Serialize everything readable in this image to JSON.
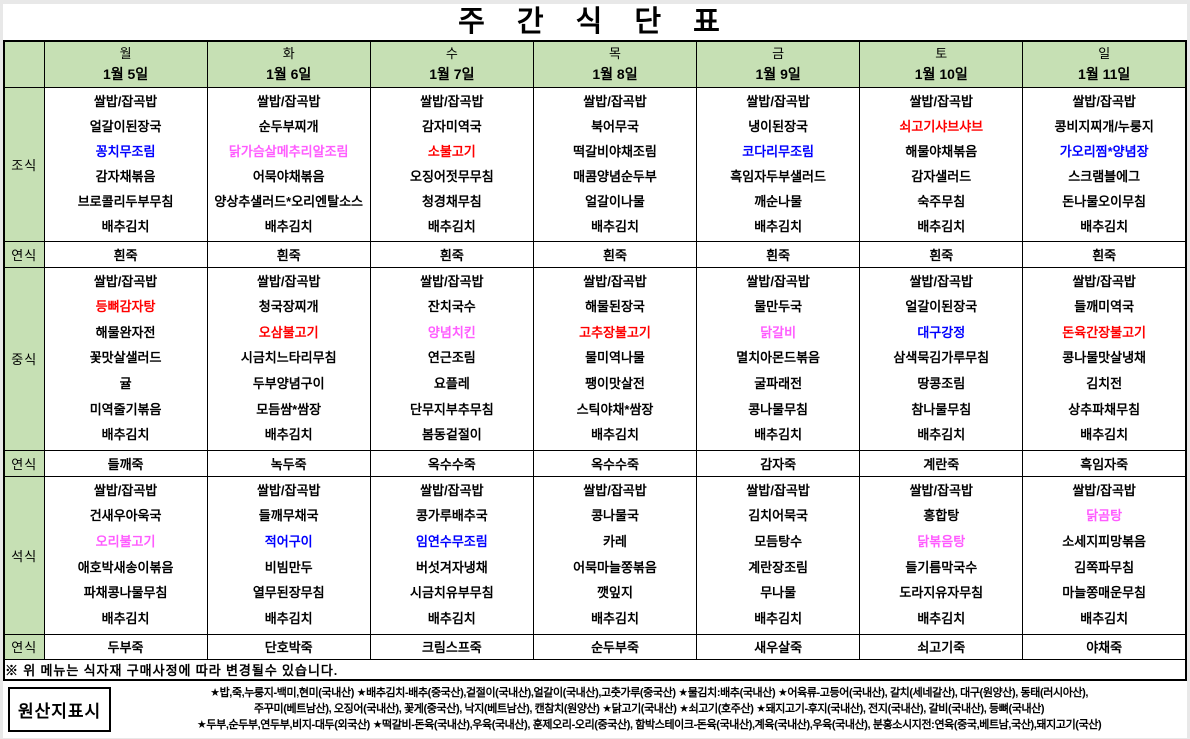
{
  "title": "주 간 식 단 표",
  "note": "※ 위 메뉴는 식자재 구매사정에 따라 변경될수 있습니다.",
  "colors": {
    "red": "#ff0000",
    "blue": "#0000ff",
    "pink": "#ff5cff",
    "header_green": "#c6e0b4"
  },
  "sections": [
    {
      "key": "breakfast",
      "label": "조식",
      "kind": "meal"
    },
    {
      "key": "breakfast_soft",
      "label": "연식",
      "kind": "soft"
    },
    {
      "key": "lunch",
      "label": "중식",
      "kind": "meal"
    },
    {
      "key": "lunch_soft",
      "label": "연식",
      "kind": "soft"
    },
    {
      "key": "dinner",
      "label": "석식",
      "kind": "meal"
    },
    {
      "key": "dinner_soft",
      "label": "연식",
      "kind": "soft"
    }
  ],
  "days": [
    {
      "name": "월",
      "date": "1월 5일",
      "breakfast": [
        {
          "t": "쌀밥/잡곡밥"
        },
        {
          "t": "얼갈이된장국"
        },
        {
          "t": "꽁치무조림",
          "c": "blue"
        },
        {
          "t": "감자채볶음"
        },
        {
          "t": "브로콜리두부무침"
        },
        {
          "t": "배추김치"
        }
      ],
      "breakfast_soft": "흰죽",
      "lunch": [
        {
          "t": "쌀밥/잡곡밥"
        },
        {
          "t": "등뼈감자탕",
          "c": "red"
        },
        {
          "t": "해물완자전"
        },
        {
          "t": "꽃맛살샐러드"
        },
        {
          "t": "귤"
        },
        {
          "t": "미역줄기볶음"
        },
        {
          "t": "배추김치"
        }
      ],
      "lunch_soft": "들깨죽",
      "dinner": [
        {
          "t": "쌀밥/잡곡밥"
        },
        {
          "t": "건새우아욱국"
        },
        {
          "t": "오리불고기",
          "c": "pink"
        },
        {
          "t": "애호박새송이볶음"
        },
        {
          "t": "파채콩나물무침"
        },
        {
          "t": "배추김치"
        }
      ],
      "dinner_soft": "두부죽"
    },
    {
      "name": "화",
      "date": "1월 6일",
      "breakfast": [
        {
          "t": "쌀밥/잡곡밥"
        },
        {
          "t": "순두부찌개"
        },
        {
          "t": "닭가슴살메추리알조림",
          "c": "pink"
        },
        {
          "t": "어묵야채볶음"
        },
        {
          "t": "양상추샐러드*오리엔탈소스"
        },
        {
          "t": "배추김치"
        }
      ],
      "breakfast_soft": "흰죽",
      "lunch": [
        {
          "t": "쌀밥/잡곡밥"
        },
        {
          "t": "청국장찌개"
        },
        {
          "t": "오삼불고기",
          "c": "red"
        },
        {
          "t": "시금치느타리무침"
        },
        {
          "t": "두부양념구이"
        },
        {
          "t": "모듬쌈*쌈장"
        },
        {
          "t": "배추김치"
        }
      ],
      "lunch_soft": "녹두죽",
      "dinner": [
        {
          "t": "쌀밥/잡곡밥"
        },
        {
          "t": "들깨무채국"
        },
        {
          "t": "적어구이",
          "c": "blue"
        },
        {
          "t": "비빔만두"
        },
        {
          "t": "열무된장무침"
        },
        {
          "t": "배추김치"
        }
      ],
      "dinner_soft": "단호박죽"
    },
    {
      "name": "수",
      "date": "1월 7일",
      "breakfast": [
        {
          "t": "쌀밥/잡곡밥"
        },
        {
          "t": "감자미역국"
        },
        {
          "t": "소불고기",
          "c": "red"
        },
        {
          "t": "오징어젓무무침"
        },
        {
          "t": "청경채무침"
        },
        {
          "t": "배추김치"
        }
      ],
      "breakfast_soft": "흰죽",
      "lunch": [
        {
          "t": "쌀밥/잡곡밥"
        },
        {
          "t": "잔치국수"
        },
        {
          "t": "양념치킨",
          "c": "pink"
        },
        {
          "t": "연근조림"
        },
        {
          "t": "요플레"
        },
        {
          "t": "단무지부추무침"
        },
        {
          "t": "봄동겉절이"
        }
      ],
      "lunch_soft": "옥수수죽",
      "dinner": [
        {
          "t": "쌀밥/잡곡밥"
        },
        {
          "t": "콩가루배추국"
        },
        {
          "t": "임연수무조림",
          "c": "blue"
        },
        {
          "t": "버섯겨자냉채"
        },
        {
          "t": "시금치유부무침"
        },
        {
          "t": "배추김치"
        }
      ],
      "dinner_soft": "크림스프죽"
    },
    {
      "name": "목",
      "date": "1월 8일",
      "breakfast": [
        {
          "t": "쌀밥/잡곡밥"
        },
        {
          "t": "북어무국"
        },
        {
          "t": "떡갈비야채조림"
        },
        {
          "t": "매콤양념순두부"
        },
        {
          "t": "얼갈이나물"
        },
        {
          "t": "배추김치"
        }
      ],
      "breakfast_soft": "흰죽",
      "lunch": [
        {
          "t": "쌀밥/잡곡밥"
        },
        {
          "t": "해물된장국"
        },
        {
          "t": "고추장불고기",
          "c": "red"
        },
        {
          "t": "물미역나물"
        },
        {
          "t": "팽이맛살전"
        },
        {
          "t": "스틱야채*쌈장"
        },
        {
          "t": "배추김치"
        }
      ],
      "lunch_soft": "옥수수죽",
      "dinner": [
        {
          "t": "쌀밥/잡곡밥"
        },
        {
          "t": "콩나물국"
        },
        {
          "t": "카레"
        },
        {
          "t": "어묵마늘쫑볶음"
        },
        {
          "t": "깻잎지"
        },
        {
          "t": "배추김치"
        }
      ],
      "dinner_soft": "순두부죽"
    },
    {
      "name": "금",
      "date": "1월 9일",
      "breakfast": [
        {
          "t": "쌀밥/잡곡밥"
        },
        {
          "t": "냉이된장국"
        },
        {
          "t": "코다리무조림",
          "c": "blue"
        },
        {
          "t": "흑임자두부샐러드"
        },
        {
          "t": "깨순나물"
        },
        {
          "t": "배추김치"
        }
      ],
      "breakfast_soft": "흰죽",
      "lunch": [
        {
          "t": "쌀밥/잡곡밥"
        },
        {
          "t": "물만두국"
        },
        {
          "t": "닭갈비",
          "c": "pink"
        },
        {
          "t": "멸치아몬드볶음"
        },
        {
          "t": "굴파래전"
        },
        {
          "t": "콩나물무침"
        },
        {
          "t": "배추김치"
        }
      ],
      "lunch_soft": "감자죽",
      "dinner": [
        {
          "t": "쌀밥/잡곡밥"
        },
        {
          "t": "김치어묵국"
        },
        {
          "t": "모듬탕수"
        },
        {
          "t": "계란장조림"
        },
        {
          "t": "무나물"
        },
        {
          "t": "배추김치"
        }
      ],
      "dinner_soft": "새우살죽"
    },
    {
      "name": "토",
      "date": "1월 10일",
      "breakfast": [
        {
          "t": "쌀밥/잡곡밥"
        },
        {
          "t": "쇠고기샤브샤브",
          "c": "red"
        },
        {
          "t": "해물야채볶음"
        },
        {
          "t": "감자샐러드"
        },
        {
          "t": "숙주무침"
        },
        {
          "t": "배추김치"
        }
      ],
      "breakfast_soft": "흰죽",
      "lunch": [
        {
          "t": "쌀밥/잡곡밥"
        },
        {
          "t": "얼갈이된장국"
        },
        {
          "t": "대구강정",
          "c": "blue"
        },
        {
          "t": "삼색묵김가루무침"
        },
        {
          "t": "땅콩조림"
        },
        {
          "t": "참나물무침"
        },
        {
          "t": "배추김치"
        }
      ],
      "lunch_soft": "계란죽",
      "dinner": [
        {
          "t": "쌀밥/잡곡밥"
        },
        {
          "t": "홍합탕"
        },
        {
          "t": "닭볶음탕",
          "c": "pink"
        },
        {
          "t": "들기름막국수"
        },
        {
          "t": "도라지유자무침"
        },
        {
          "t": "배추김치"
        }
      ],
      "dinner_soft": "쇠고기죽"
    },
    {
      "name": "일",
      "date": "1월 11일",
      "breakfast": [
        {
          "t": "쌀밥/잡곡밥"
        },
        {
          "t": "콩비지찌개/누룽지"
        },
        {
          "t": "가오리찜*양념장",
          "c": "blue"
        },
        {
          "t": "스크램블에그"
        },
        {
          "t": "돈나물오이무침"
        },
        {
          "t": "배추김치"
        }
      ],
      "breakfast_soft": "흰죽",
      "lunch": [
        {
          "t": "쌀밥/잡곡밥"
        },
        {
          "t": "들깨미역국"
        },
        {
          "t": "돈육간장불고기",
          "c": "red"
        },
        {
          "t": "콩나물맛살냉채"
        },
        {
          "t": "김치전"
        },
        {
          "t": "상추파채무침"
        },
        {
          "t": "배추김치"
        }
      ],
      "lunch_soft": "흑임자죽",
      "dinner": [
        {
          "t": "쌀밥/잡곡밥"
        },
        {
          "t": "닭곰탕",
          "c": "pink"
        },
        {
          "t": "소세지피망볶음"
        },
        {
          "t": "김쪽파무침"
        },
        {
          "t": "마늘쫑매운무침"
        },
        {
          "t": "배추김치"
        }
      ],
      "dinner_soft": "야채죽"
    }
  ],
  "origin": {
    "label": "원산지표시",
    "lines": [
      "★밥,죽,누룽지-백미,현미(국내산) ★배추김치-배추(중국산),겉절이(국내산),얼갈이(국내산),고춧가루(중국산) ★물김치:배추(국내산) ★어육류-고등어(국내산), 갈치(세네갈산), 대구(원양산), 동태(러시아산),",
      "주꾸미(베트남산), 오징어(국내산), 꽃게(중국산), 낙지(베트남산), 캔참치(원양산) ★닭고기(국내산) ★쇠고기(호주산) ★돼지고기-후지(국내산), 전지(국내산), 갈비(국내산), 등뼈(국내산)",
      "★두부,순두부,연두부,비지-대두(외국산) ★떡갈비-돈육(국내산),우육(국내산), 훈제오리-오리(중국산), 함박스테이크-돈육(국내산),계육(국내산),우육(국내산), 분홍소시지전:연육(중국,베트남,국산),돼지고기(국산)"
    ]
  }
}
